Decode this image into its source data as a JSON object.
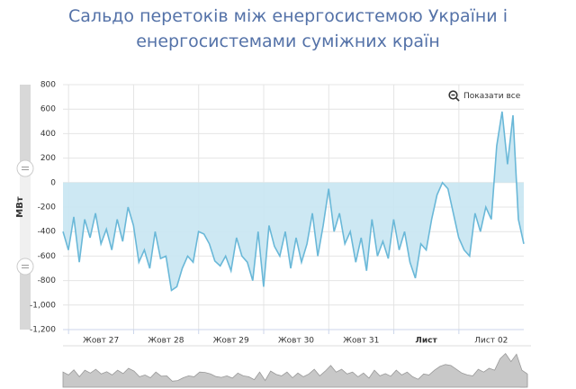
{
  "chart_data": {
    "type": "area",
    "title": "Сальдо перетоків між енергосистемою України і енергосистемами суміжних країн",
    "y_label": "МВт",
    "reset_zoom": "Показати все",
    "categories": [
      null,
      null,
      null,
      null,
      null,
      null,
      null,
      "Жовт 27",
      null,
      null,
      null,
      null,
      null,
      null,
      null,
      null,
      null,
      null,
      null,
      "Жовт 28",
      null,
      null,
      null,
      null,
      null,
      null,
      null,
      null,
      null,
      null,
      null,
      "Жовт 29",
      null,
      null,
      null,
      null,
      null,
      null,
      null,
      null,
      null,
      null,
      null,
      "Жовт 30",
      null,
      null,
      null,
      null,
      null,
      null,
      null,
      null,
      null,
      null,
      null,
      "Жовт 31",
      null,
      null,
      null,
      null,
      null,
      null,
      null,
      null,
      null,
      null,
      null,
      "Лист",
      null,
      null,
      null,
      null,
      null,
      null,
      null,
      null,
      null,
      null,
      null,
      "Лист 02",
      null,
      null,
      null,
      null,
      null,
      null
    ],
    "values": [
      -400,
      -550,
      -280,
      -650,
      -300,
      -450,
      -250,
      -500,
      -380,
      -550,
      -300,
      -480,
      -200,
      -350,
      -650,
      -550,
      -700,
      -400,
      -620,
      -600,
      -880,
      -850,
      -700,
      -600,
      -650,
      -400,
      -420,
      -500,
      -640,
      -680,
      -600,
      -720,
      -450,
      -600,
      -650,
      -800,
      -400,
      -850,
      -350,
      -520,
      -600,
      -400,
      -700,
      -450,
      -650,
      -500,
      -250,
      -600,
      -350,
      -50,
      -400,
      -250,
      -500,
      -400,
      -650,
      -450,
      -720,
      -300,
      -600,
      -480,
      -620,
      -300,
      -550,
      -400,
      -650,
      -780,
      -500,
      -550,
      -300,
      -100,
      0,
      -50,
      -250,
      -450,
      -550,
      -600,
      -250,
      -400,
      -200,
      -300,
      300,
      580,
      150,
      550,
      -300,
      -500
    ],
    "color": "#6ab8d8",
    "fill": "#c8e5f2",
    "ylim": [
      -1200,
      800
    ],
    "yticks": [
      -1200,
      -1000,
      -800,
      -600,
      -400,
      -200,
      0,
      200,
      400,
      600,
      800
    ],
    "ytick_labels": [
      "-1,200",
      "-1,000",
      "-800",
      "-600",
      "-400",
      "-200",
      "0",
      "200",
      "400",
      "600",
      "800"
    ],
    "grid": true
  }
}
